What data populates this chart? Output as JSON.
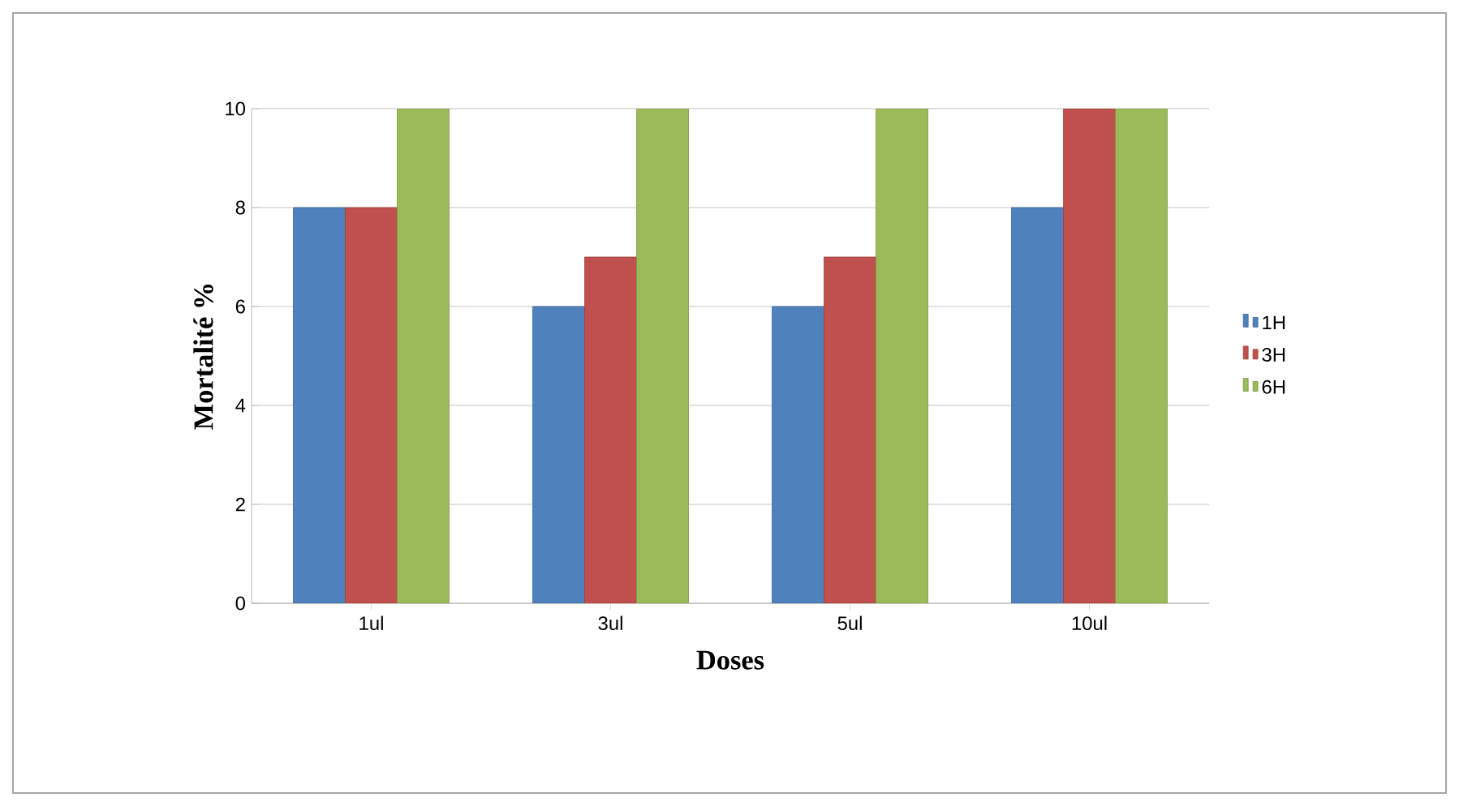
{
  "chart_data": {
    "type": "bar",
    "xlabel": "Doses",
    "ylabel": "Mortalité %",
    "categories": [
      "1ul",
      "3ul",
      "5ul",
      "10ul"
    ],
    "series": [
      {
        "name": "1H",
        "color": "#4f81bd",
        "values": [
          8,
          6,
          6,
          8
        ]
      },
      {
        "name": "3H",
        "color": "#c0504d",
        "values": [
          8,
          7,
          7,
          10
        ]
      },
      {
        "name": "6H",
        "color": "#9bbb59",
        "values": [
          10,
          10,
          10,
          10
        ]
      }
    ],
    "ylim": [
      0,
      10
    ],
    "yticks": [
      0,
      2,
      4,
      6,
      8,
      10
    ],
    "grid": "y",
    "legend": "right"
  }
}
